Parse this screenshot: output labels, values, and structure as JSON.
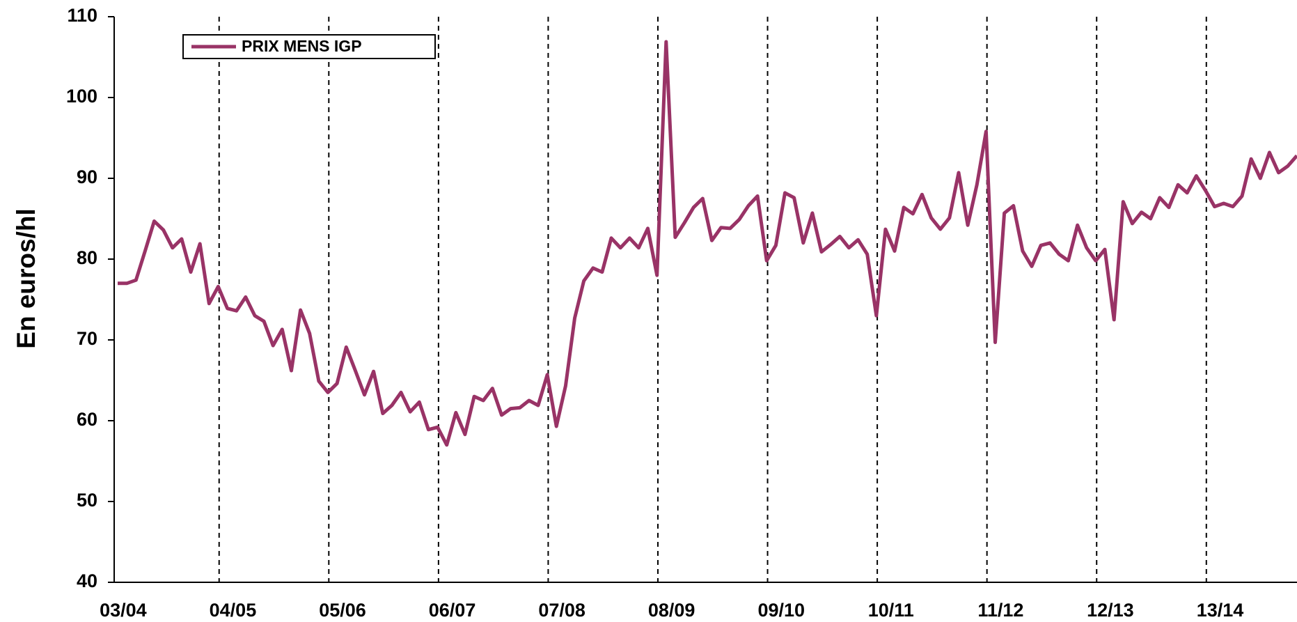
{
  "chart_data": {
    "type": "line",
    "ylabel": "En euros/hl",
    "categories": [
      "03/04",
      null,
      null,
      null,
      null,
      null,
      null,
      null,
      null,
      null,
      null,
      null,
      "04/05",
      null,
      null,
      null,
      null,
      null,
      null,
      null,
      null,
      null,
      null,
      null,
      "05/06",
      null,
      null,
      null,
      null,
      null,
      null,
      null,
      null,
      null,
      null,
      null,
      "06/07",
      null,
      null,
      null,
      null,
      null,
      null,
      null,
      null,
      null,
      null,
      null,
      "07/08",
      null,
      null,
      null,
      null,
      null,
      null,
      null,
      null,
      null,
      null,
      null,
      "08/09",
      null,
      null,
      null,
      null,
      null,
      null,
      null,
      null,
      null,
      null,
      null,
      "09/10",
      null,
      null,
      null,
      null,
      null,
      null,
      null,
      null,
      null,
      null,
      null,
      "10/11",
      null,
      null,
      null,
      null,
      null,
      null,
      null,
      null,
      null,
      null,
      null,
      "11/12",
      null,
      null,
      null,
      null,
      null,
      null,
      null,
      null,
      null,
      null,
      null,
      "12/13",
      null,
      null,
      null,
      null,
      null,
      null,
      null,
      null,
      null,
      null,
      null,
      "13/14",
      null,
      null,
      null,
      null,
      null,
      null,
      null,
      null,
      null
    ],
    "series": [
      {
        "name": "PRIX MENS IGP",
        "color": "#993366",
        "values": [
          77.0,
          77.0,
          77.4,
          81,
          84.7,
          83.6,
          81.4,
          82.5,
          78.4,
          81.9,
          74.5,
          76.6,
          73.9,
          73.6,
          75.3,
          73.0,
          72.3,
          69.3,
          71.3,
          66.2,
          73.7,
          70.8,
          64.9,
          63.5,
          64.6,
          69.1,
          66.2,
          63.2,
          66.1,
          60.9,
          61.9,
          63.5,
          61.1,
          62.3,
          58.9,
          59.2,
          57.0,
          61.0,
          58.3,
          63.0,
          62.5,
          64.0,
          60.7,
          61.5,
          61.6,
          62.5,
          61.9,
          65.7,
          59.3,
          64.3,
          72.7,
          77.3,
          78.9,
          78.4,
          82.6,
          81.4,
          82.6,
          81.4,
          83.8,
          78.0,
          106.9,
          82.7,
          84.5,
          86.4,
          87.5,
          82.3,
          83.9,
          83.8,
          84.9,
          86.6,
          87.8,
          79.8,
          81.7,
          88.2,
          87.6,
          82.0,
          85.7,
          80.9,
          81.8,
          82.8,
          81.4,
          82.4,
          80.6,
          73.0,
          83.7,
          81.0,
          86.4,
          85.6,
          88.0,
          85.1,
          83.7,
          85.1,
          90.7,
          84.2,
          89.2,
          95.8,
          69.7,
          85.7,
          86.6,
          81.0,
          79.1,
          81.7,
          82.0,
          80.6,
          79.8,
          84.2,
          81.4,
          79.8,
          81.2,
          72.5,
          87.1,
          84.4,
          85.8,
          85.0,
          87.6,
          86.4,
          89.2,
          88.2,
          90.3,
          88.5,
          86.5,
          86.9,
          86.5,
          87.8,
          92.4,
          90.0,
          93.2,
          90.7,
          91.5,
          92.8
        ]
      }
    ],
    "ylim": [
      40,
      110
    ],
    "yticks": [
      40,
      50,
      60,
      70,
      80,
      90,
      100,
      110
    ],
    "legend": "upper left"
  }
}
